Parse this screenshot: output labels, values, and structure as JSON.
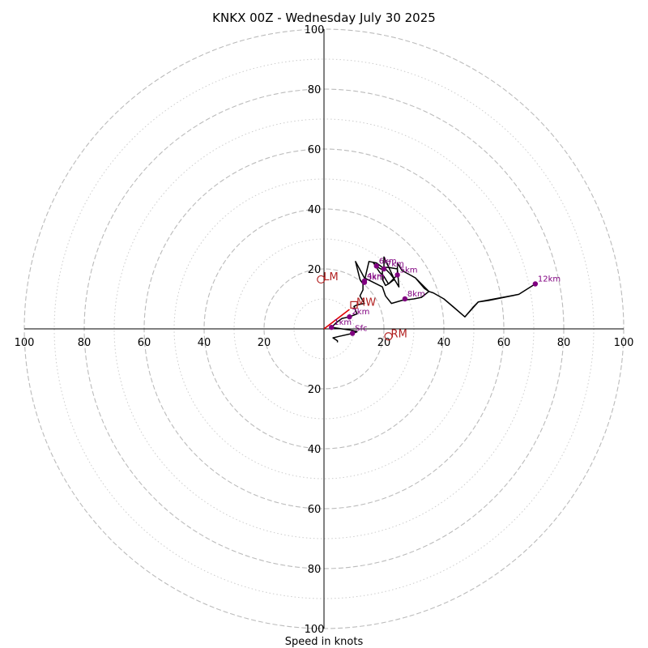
{
  "chart_data": {
    "type": "hodograph",
    "title": "KNKX 00Z - Wednesday July 30 2025",
    "xlabel": "Speed in knots",
    "max_speed": 100,
    "tick_labels": [
      "20",
      "40",
      "60",
      "80",
      "100"
    ],
    "ring_values_dashed": [
      20,
      40,
      60,
      80,
      100
    ],
    "ring_values_dotted": [
      10,
      30,
      50,
      70,
      90
    ],
    "grid": true,
    "colors": {
      "profile": "#000000",
      "height_marker": "#800080",
      "motion": "#b22222",
      "mean_wind_vector": "#e00000",
      "grid": "#bbbbbb"
    },
    "profile": [
      [
        4.5,
        -4.5
      ],
      [
        4.5,
        -4
      ],
      [
        3,
        -3
      ],
      [
        5,
        -2.5
      ],
      [
        9.5,
        -1.5
      ],
      [
        11,
        -1
      ],
      [
        9.5,
        -0.5
      ],
      [
        6,
        0
      ],
      [
        2.5,
        0.5
      ],
      [
        4,
        2
      ],
      [
        6,
        3.5
      ],
      [
        8.5,
        4
      ],
      [
        11,
        5
      ],
      [
        10,
        7.5
      ],
      [
        11,
        8
      ],
      [
        13.5,
        8.5
      ],
      [
        12,
        11
      ],
      [
        13,
        13
      ],
      [
        13,
        15
      ],
      [
        12,
        16.5
      ],
      [
        10.5,
        22.5
      ],
      [
        13.5,
        17
      ],
      [
        19.5,
        14
      ],
      [
        20.5,
        11
      ],
      [
        22.5,
        8.5
      ],
      [
        26,
        9.5
      ],
      [
        30,
        10
      ],
      [
        32.5,
        10.5
      ],
      [
        35,
        12.5
      ],
      [
        30.5,
        17
      ],
      [
        33.5,
        13.5
      ],
      [
        35,
        12.5
      ],
      [
        36.5,
        12
      ],
      [
        40,
        10
      ],
      [
        43,
        7.5
      ],
      [
        47,
        4
      ],
      [
        50,
        7.5
      ],
      [
        51.5,
        9
      ],
      [
        55,
        9.5
      ],
      [
        65,
        11.5
      ],
      [
        70.5,
        15
      ],
      [
        65,
        11.5
      ],
      [
        51.5,
        9
      ],
      [
        47,
        4
      ],
      [
        40,
        10
      ],
      [
        36.5,
        12
      ],
      [
        35,
        12.5
      ],
      [
        30.5,
        17
      ],
      [
        26,
        19.5
      ],
      [
        24.5,
        22
      ],
      [
        24.5,
        18
      ],
      [
        21.5,
        15
      ],
      [
        20,
        17.5
      ],
      [
        19,
        18.5
      ],
      [
        18.5,
        19
      ],
      [
        16.5,
        22
      ],
      [
        18,
        20.5
      ],
      [
        20,
        19.5
      ],
      [
        20,
        24
      ],
      [
        23.5,
        16.5
      ],
      [
        21.5,
        15
      ],
      [
        20.5,
        14.5
      ],
      [
        19.5,
        16.5
      ],
      [
        19.5,
        19.5
      ],
      [
        20.5,
        20
      ],
      [
        22,
        18.5
      ],
      [
        23.5,
        16.5
      ],
      [
        25,
        14
      ],
      [
        24.5,
        20
      ],
      [
        21.5,
        20.5
      ],
      [
        19.5,
        20.5
      ],
      [
        17.5,
        22
      ],
      [
        15,
        22.5
      ],
      [
        13.5,
        16
      ]
    ],
    "height_markers": [
      {
        "label": "Sfc",
        "u": 9.5,
        "v": -1.5
      },
      {
        "label": "1km",
        "u": 2.5,
        "v": 0.5
      },
      {
        "label": "2km",
        "u": 8.5,
        "v": 4
      },
      {
        "label": "3km",
        "u": 13.5,
        "v": 15.5
      },
      {
        "label": "4km",
        "u": 13.5,
        "v": 16
      },
      {
        "label": "5km",
        "u": 24.5,
        "v": 18
      },
      {
        "label": "6km",
        "u": 17.5,
        "v": 21
      },
      {
        "label": "7km",
        "u": 20,
        "v": 20
      },
      {
        "label": "8km",
        "u": 27,
        "v": 10
      },
      {
        "label": "12km",
        "u": 70.5,
        "v": 15
      }
    ],
    "storm_motion": [
      {
        "label": "LM",
        "u": -1,
        "v": 16.5
      },
      {
        "label": "RM",
        "u": 21.5,
        "v": -2.5
      },
      {
        "label": "MW",
        "u": 10,
        "v": 8
      }
    ],
    "mean_wind_vector": {
      "u": 8.5,
      "v": 6.5
    }
  }
}
